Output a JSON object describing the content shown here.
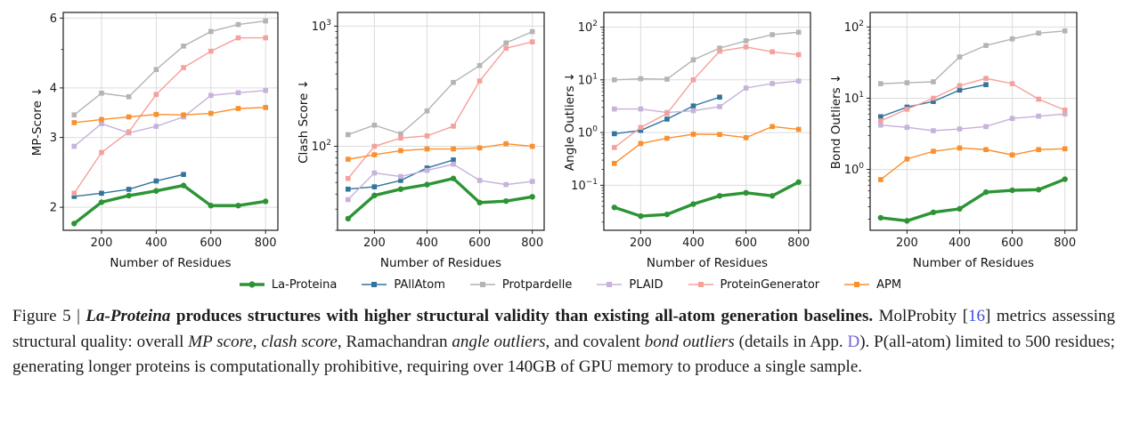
{
  "legend": {
    "items": [
      {
        "label": "La-Proteina",
        "color": "#2d9435",
        "marker": "circle",
        "thick": true
      },
      {
        "label": "PAllAtom",
        "color": "#31749e",
        "marker": "square",
        "thick": false
      },
      {
        "label": "Protpardelle",
        "color": "#b4b4b4",
        "marker": "square",
        "thick": false
      },
      {
        "label": "PLAID",
        "color": "#c6b2da",
        "marker": "square",
        "thick": false
      },
      {
        "label": "ProteinGenerator",
        "color": "#f5a09b",
        "marker": "square",
        "thick": false
      },
      {
        "label": "APM",
        "color": "#fa8f2d",
        "marker": "square",
        "thick": false
      }
    ]
  },
  "chart_data": [
    {
      "type": "line",
      "id": "chart-mp-score",
      "xlabel": "Number of Residues",
      "ylabel": "MP-Score ↓",
      "yscale": "log",
      "xlim": [
        60,
        845
      ],
      "ylim": [
        1.75,
        6.2
      ],
      "xticks": [
        200,
        400,
        600,
        800
      ],
      "yticks": [
        2,
        3,
        4,
        6
      ],
      "ytick_format": "plain",
      "x": [
        100,
        200,
        300,
        400,
        500,
        600,
        700,
        800
      ],
      "series": [
        {
          "name": "La-Proteina",
          "values": [
            1.82,
            2.06,
            2.14,
            2.2,
            2.27,
            2.02,
            2.02,
            2.07
          ]
        },
        {
          "name": "PAllAtom",
          "values": [
            2.13,
            2.17,
            2.22,
            2.33,
            2.42
          ]
        },
        {
          "name": "Protpardelle",
          "values": [
            3.42,
            3.88,
            3.8,
            4.45,
            5.1,
            5.55,
            5.78,
            5.9
          ]
        },
        {
          "name": "PLAID",
          "values": [
            2.85,
            3.25,
            3.08,
            3.2,
            3.38,
            3.83,
            3.89,
            3.94
          ]
        },
        {
          "name": "ProteinGenerator",
          "values": [
            2.17,
            2.75,
            3.1,
            3.85,
            4.5,
            4.95,
            5.35,
            5.35
          ]
        },
        {
          "name": "APM",
          "values": [
            3.27,
            3.33,
            3.38,
            3.43,
            3.42,
            3.45,
            3.55,
            3.57
          ]
        }
      ]
    },
    {
      "type": "line",
      "id": "chart-clash-score",
      "xlabel": "Number of Residues",
      "ylabel": "Clash Score ↓",
      "yscale": "log",
      "xlim": [
        60,
        845
      ],
      "ylim": [
        20,
        1300
      ],
      "xticks": [
        200,
        400,
        600,
        800
      ],
      "yticks": [
        100,
        1000
      ],
      "ytick_format": "power",
      "x": [
        100,
        200,
        300,
        400,
        500,
        600,
        700,
        800
      ],
      "series": [
        {
          "name": "La-Proteina",
          "values": [
            25,
            39,
            44,
            48,
            54,
            34,
            35,
            38
          ]
        },
        {
          "name": "PAllAtom",
          "values": [
            44,
            46,
            52,
            66,
            77
          ]
        },
        {
          "name": "Protpardelle",
          "values": [
            125,
            150,
            127,
            197,
            340,
            470,
            725,
            900
          ]
        },
        {
          "name": "PLAID",
          "values": [
            36,
            60,
            56,
            63,
            71,
            52,
            48,
            51
          ]
        },
        {
          "name": "ProteinGenerator",
          "values": [
            54,
            100,
            117,
            122,
            147,
            350,
            655,
            740
          ]
        },
        {
          "name": "APM",
          "values": [
            78,
            85,
            92,
            95,
            95,
            97,
            105,
            100
          ]
        }
      ]
    },
    {
      "type": "line",
      "id": "chart-angle-outliers",
      "xlabel": "Number of Residues",
      "ylabel": "Angle Outliers ↓",
      "yscale": "log",
      "xlim": [
        60,
        845
      ],
      "ylim": [
        0.014,
        190
      ],
      "xticks": [
        200,
        400,
        600,
        800
      ],
      "yticks": [
        0.1,
        1,
        10,
        100
      ],
      "ytick_format": "power",
      "x": [
        100,
        200,
        300,
        400,
        500,
        600,
        700,
        800
      ],
      "series": [
        {
          "name": "La-Proteina",
          "values": [
            0.038,
            0.026,
            0.028,
            0.044,
            0.063,
            0.072,
            0.063,
            0.115
          ]
        },
        {
          "name": "PAllAtom",
          "values": [
            0.95,
            1.1,
            1.8,
            3.2,
            4.7
          ]
        },
        {
          "name": "Protpardelle",
          "values": [
            10,
            10.5,
            10.3,
            24,
            40,
            55,
            72,
            80
          ]
        },
        {
          "name": "PLAID",
          "values": [
            2.8,
            2.8,
            2.4,
            2.6,
            3.1,
            7.0,
            8.5,
            9.5
          ]
        },
        {
          "name": "ProteinGenerator",
          "values": [
            0.52,
            1.25,
            2.3,
            10,
            35,
            42,
            34,
            30
          ]
        },
        {
          "name": "APM",
          "values": [
            0.26,
            0.62,
            0.78,
            0.93,
            0.92,
            0.8,
            1.3,
            1.15
          ]
        }
      ]
    },
    {
      "type": "line",
      "id": "chart-bond-outliers",
      "xlabel": "Number of Residues",
      "ylabel": "Bond Outliers ↓",
      "yscale": "log",
      "xlim": [
        60,
        845
      ],
      "ylim": [
        0.14,
        160
      ],
      "xticks": [
        200,
        400,
        600,
        800
      ],
      "yticks": [
        1,
        10,
        100
      ],
      "ytick_format": "power",
      "x": [
        100,
        200,
        300,
        400,
        500,
        600,
        700,
        800
      ],
      "series": [
        {
          "name": "La-Proteina",
          "values": [
            0.21,
            0.19,
            0.25,
            0.28,
            0.48,
            0.51,
            0.52,
            0.73
          ]
        },
        {
          "name": "PAllAtom",
          "values": [
            5.5,
            7.5,
            9.0,
            13,
            15.5
          ]
        },
        {
          "name": "Protpardelle",
          "values": [
            16,
            16.5,
            17,
            38,
            55,
            68,
            82,
            88
          ]
        },
        {
          "name": "PLAID",
          "values": [
            4.2,
            3.9,
            3.5,
            3.7,
            4.0,
            5.2,
            5.6,
            6.0
          ]
        },
        {
          "name": "ProteinGenerator",
          "values": [
            4.8,
            7.0,
            10,
            15,
            19,
            16,
            9.7,
            6.8
          ]
        },
        {
          "name": "APM",
          "values": [
            0.72,
            1.4,
            1.8,
            2.0,
            1.9,
            1.6,
            1.9,
            1.95
          ]
        }
      ]
    }
  ],
  "caption": {
    "segments": [
      {
        "t": "Figure 5 | ",
        "s": "normal"
      },
      {
        "t": "La-Proteina",
        "s": "bolditalic"
      },
      {
        "t": " produces structures with higher structural validity than existing all-atom generation baselines.",
        "s": "bold"
      },
      {
        "t": " MolProbity [",
        "s": "normal"
      },
      {
        "t": "16",
        "s": "link",
        "c": "#3c4ddc"
      },
      {
        "t": "] metrics assessing structural quality: overall ",
        "s": "normal"
      },
      {
        "t": "MP score",
        "s": "italic"
      },
      {
        "t": ", ",
        "s": "normal"
      },
      {
        "t": "clash score",
        "s": "italic"
      },
      {
        "t": ", Ramachandran ",
        "s": "normal"
      },
      {
        "t": "angle outliers",
        "s": "italic"
      },
      {
        "t": ", and covalent ",
        "s": "normal"
      },
      {
        "t": "bond outliers",
        "s": "italic"
      },
      {
        "t": " (details in App. ",
        "s": "normal"
      },
      {
        "t": "D",
        "s": "link",
        "c": "#7263d8"
      },
      {
        "t": "). P(all-atom) limited to 500 residues; generating longer proteins is computationally prohibitive, requiring over 140GB of GPU memory to produce a single sample.",
        "s": "normal"
      }
    ]
  }
}
